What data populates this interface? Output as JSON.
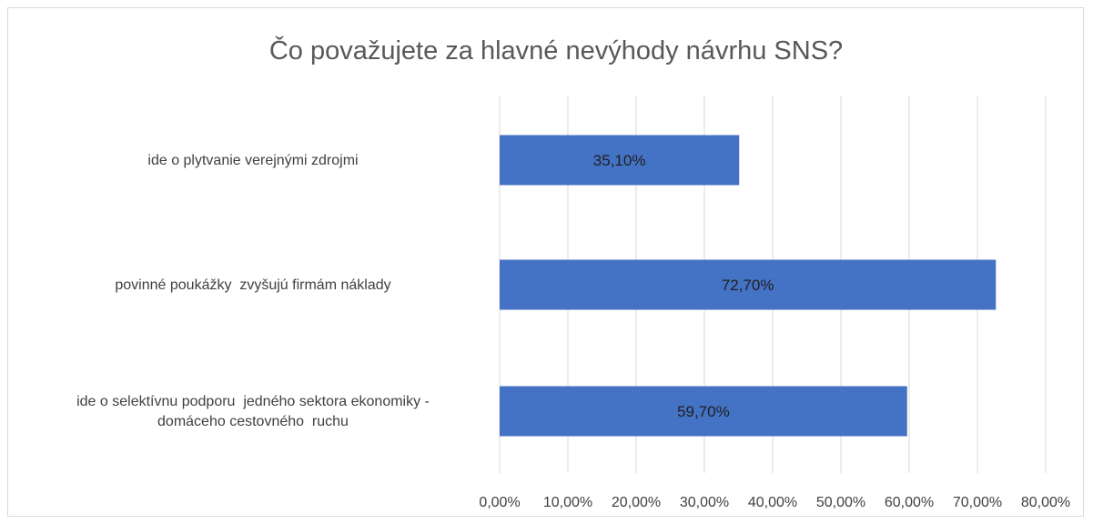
{
  "chart_data": {
    "type": "bar",
    "orientation": "horizontal",
    "title": "Čo považujete za hlavné nevýhody návrhu SNS?",
    "categories": [
      [
        "ide o plytvanie verejnými zdrojmi"
      ],
      [
        "povinné poukážky  zvyšujú firmám náklady"
      ],
      [
        "ide o selektívnu podporu  jedného sektora ekonomiky -",
        "domáceho cestovného  ruchu"
      ]
    ],
    "values": [
      35.1,
      72.7,
      59.7
    ],
    "data_labels": [
      "35,10%",
      "72,70%",
      "59,70%"
    ],
    "x_ticks": [
      "0,00%",
      "10,00%",
      "20,00%",
      "30,00%",
      "40,00%",
      "50,00%",
      "60,00%",
      "70,00%",
      "80,00%"
    ],
    "xlim": [
      0,
      80
    ],
    "grid": true,
    "legend": "none",
    "colors": {
      "bar": "#4472c4",
      "grid": "#d9d9d9",
      "title": "#595959",
      "text": "#404040"
    }
  }
}
